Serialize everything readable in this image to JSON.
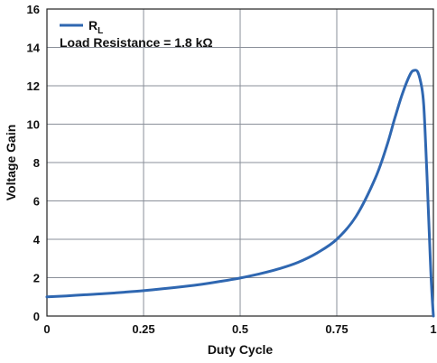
{
  "chart_data": {
    "type": "line",
    "xlabel": "Duty Cycle",
    "ylabel": "Voltage Gain",
    "xlim": [
      0,
      1
    ],
    "ylim": [
      0,
      16
    ],
    "x_ticks": [
      "0",
      "0.25",
      "0.5",
      "0.75",
      "1"
    ],
    "y_ticks": [
      "0",
      "2",
      "4",
      "6",
      "8",
      "10",
      "12",
      "14",
      "16"
    ],
    "grid": true,
    "legend_position": "top-left",
    "legend": {
      "series_label_main": "R",
      "series_label_sub": "L",
      "annotation": "Load Resistance = 1.8 kΩ"
    },
    "series": [
      {
        "name": "RL",
        "color": "#2f67b1",
        "x": [
          0,
          0.05,
          0.1,
          0.15,
          0.2,
          0.25,
          0.3,
          0.35,
          0.4,
          0.45,
          0.5,
          0.55,
          0.6,
          0.65,
          0.7,
          0.75,
          0.8,
          0.85,
          0.88,
          0.9,
          0.92,
          0.94,
          0.95,
          0.96,
          0.97,
          0.975,
          0.98,
          0.985,
          0.99,
          0.995,
          1.0
        ],
        "values": [
          1.0,
          1.05,
          1.11,
          1.17,
          1.24,
          1.32,
          1.42,
          1.53,
          1.65,
          1.81,
          1.98,
          2.2,
          2.46,
          2.8,
          3.3,
          4.0,
          5.2,
          7.2,
          8.9,
          10.3,
          11.6,
          12.6,
          12.8,
          12.7,
          11.9,
          11.0,
          9.0,
          6.5,
          4.0,
          1.6,
          0.0
        ]
      }
    ]
  }
}
